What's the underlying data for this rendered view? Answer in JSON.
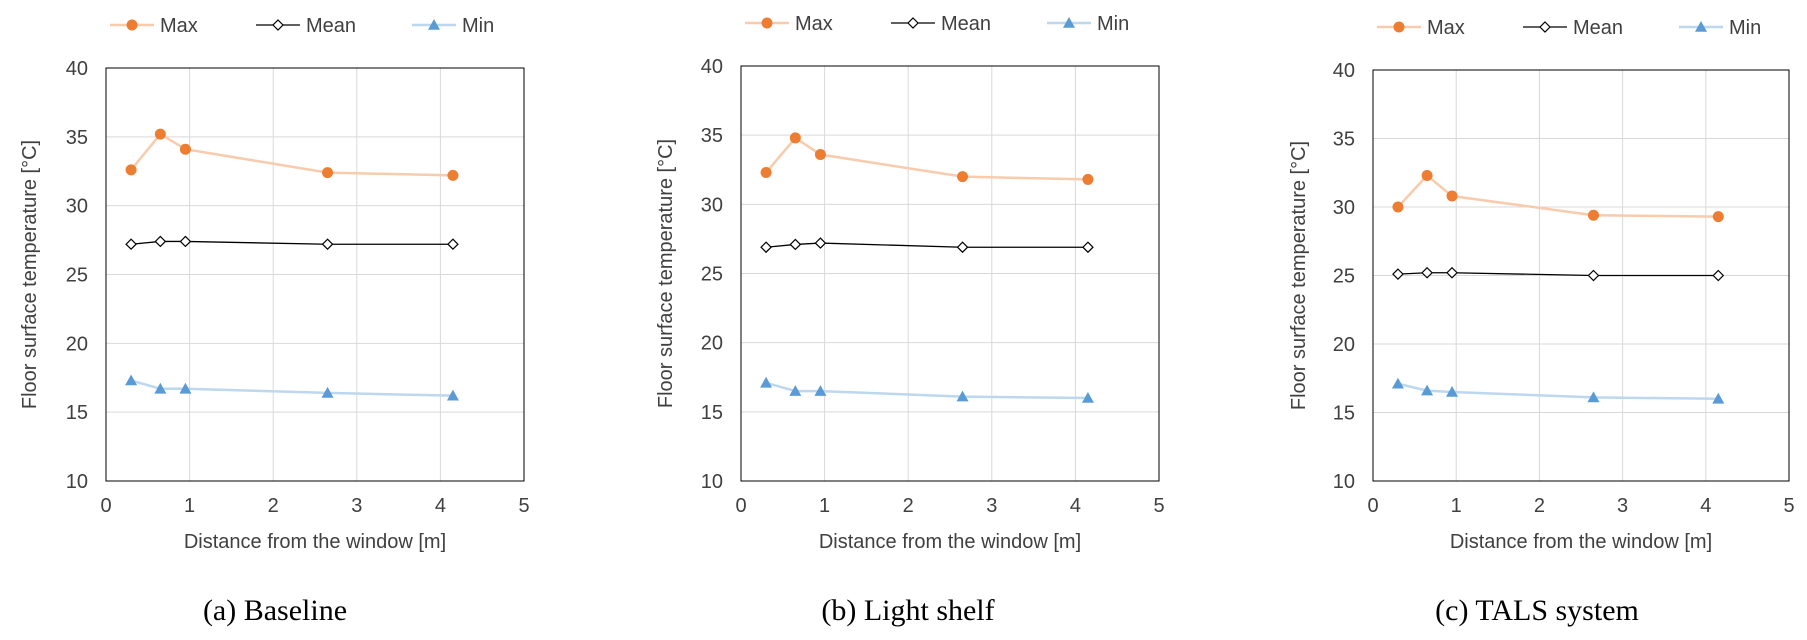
{
  "legend_labels": [
    "Max",
    "Mean",
    "Min"
  ],
  "colors": {
    "max": "#ED7D31",
    "max_line": "#F8CBAD",
    "mean": "#000000",
    "min": "#5B9BD5",
    "min_line": "#BDD7EE",
    "grid": "#D9D9D9",
    "axis_text": "#404040"
  },
  "chart_data": [
    {
      "type": "line",
      "caption": "(a) Baseline",
      "xlabel": "Distance from the window [m]",
      "ylabel": "Floor surface temperature [°C]",
      "xlim": [
        0,
        5
      ],
      "ylim": [
        10,
        40
      ],
      "xticks": [
        0,
        1,
        2,
        3,
        4,
        5
      ],
      "yticks": [
        10,
        15,
        20,
        25,
        30,
        35,
        40
      ],
      "grid": true,
      "legend": "top",
      "x": [
        0.3,
        0.65,
        0.95,
        2.65,
        4.15
      ],
      "series": [
        {
          "name": "Max",
          "values": [
            32.6,
            35.2,
            34.1,
            32.4,
            32.2
          ]
        },
        {
          "name": "Mean",
          "values": [
            27.2,
            27.4,
            27.4,
            27.2,
            27.2
          ]
        },
        {
          "name": "Min",
          "values": [
            17.3,
            16.7,
            16.7,
            16.4,
            16.2
          ]
        }
      ]
    },
    {
      "type": "line",
      "caption": "(b) Light shelf",
      "xlabel": "Distance from the window [m]",
      "ylabel": "Floor surface temperature [°C]",
      "xlim": [
        0,
        5
      ],
      "ylim": [
        10,
        40
      ],
      "xticks": [
        0,
        1,
        2,
        3,
        4,
        5
      ],
      "yticks": [
        10,
        15,
        20,
        25,
        30,
        35,
        40
      ],
      "grid": true,
      "legend": "top",
      "x": [
        0.3,
        0.65,
        0.95,
        2.65,
        4.15
      ],
      "series": [
        {
          "name": "Max",
          "values": [
            32.3,
            34.8,
            33.6,
            32.0,
            31.8
          ]
        },
        {
          "name": "Mean",
          "values": [
            26.9,
            27.1,
            27.2,
            26.9,
            26.9
          ]
        },
        {
          "name": "Min",
          "values": [
            17.1,
            16.5,
            16.5,
            16.1,
            16.0
          ]
        }
      ]
    },
    {
      "type": "line",
      "caption": "(c) TALS system",
      "xlabel": "Distance from the window [m]",
      "ylabel": "Floor surface temperature [°C]",
      "xlim": [
        0,
        5
      ],
      "ylim": [
        10,
        40
      ],
      "xticks": [
        0,
        1,
        2,
        3,
        4,
        5
      ],
      "yticks": [
        10,
        15,
        20,
        25,
        30,
        35,
        40
      ],
      "grid": true,
      "legend": "top",
      "x": [
        0.3,
        0.65,
        0.95,
        2.65,
        4.15
      ],
      "series": [
        {
          "name": "Max",
          "values": [
            30.0,
            32.3,
            30.8,
            29.4,
            29.3
          ]
        },
        {
          "name": "Mean",
          "values": [
            25.1,
            25.2,
            25.2,
            25.0,
            25.0
          ]
        },
        {
          "name": "Min",
          "values": [
            17.1,
            16.6,
            16.5,
            16.1,
            16.0
          ]
        }
      ]
    }
  ]
}
